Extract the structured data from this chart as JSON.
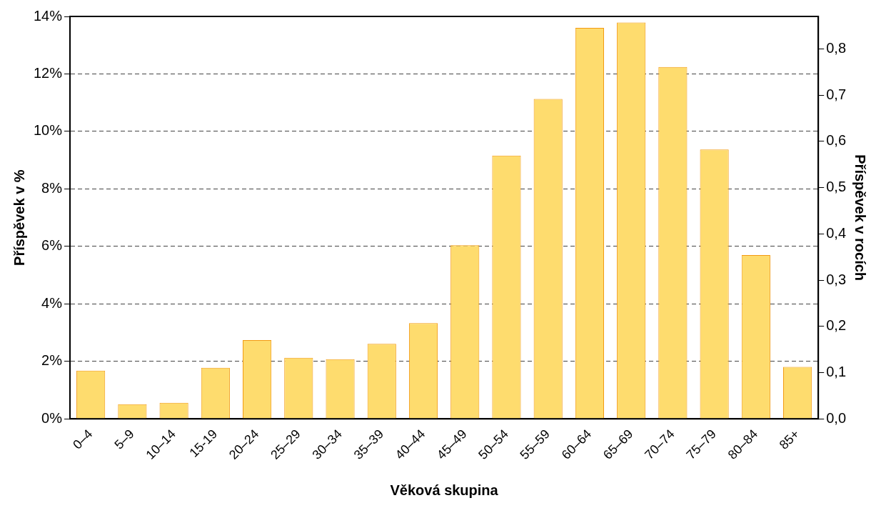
{
  "chart_data": {
    "type": "bar",
    "xlabel": "Věková skupina",
    "ylabel": "Příspěvek v %",
    "y2label": "Příspěvek v rocích",
    "categories": [
      "0–4",
      "5–9",
      "10–14",
      "15-19",
      "20–24",
      "25–29",
      "30–34",
      "35–39",
      "40–44",
      "45–49",
      "50–54",
      "55–59",
      "60–64",
      "65–69",
      "70–74",
      "75–79",
      "80–84",
      "85+"
    ],
    "values": [
      1.68,
      0.51,
      0.56,
      1.78,
      2.74,
      2.13,
      2.08,
      2.61,
      3.33,
      6.04,
      9.16,
      11.13,
      13.6,
      13.79,
      12.24,
      9.37,
      5.7,
      1.81
    ],
    "color": "#fedc6e",
    "ylim": [
      0,
      14
    ],
    "yticks": [
      {
        "value": 0,
        "label": "0%"
      },
      {
        "value": 2,
        "label": "2%"
      },
      {
        "value": 4,
        "label": "4%"
      },
      {
        "value": 6,
        "label": "6%"
      },
      {
        "value": 8,
        "label": "8%"
      },
      {
        "value": 10,
        "label": "10%"
      },
      {
        "value": 12,
        "label": "12%"
      },
      {
        "value": 14,
        "label": "14%"
      }
    ],
    "y2lim": [
      0,
      0.87
    ],
    "y2ticks": [
      {
        "value": 0,
        "label": "0,0"
      },
      {
        "value": 0.1,
        "label": "0,1"
      },
      {
        "value": 0.2,
        "label": "0,2"
      },
      {
        "value": 0.3,
        "label": "0,3"
      },
      {
        "value": 0.4,
        "label": "0,4"
      },
      {
        "value": 0.5,
        "label": "0,5"
      },
      {
        "value": 0.6,
        "label": "0,6"
      },
      {
        "value": 0.7,
        "label": "0,7"
      },
      {
        "value": 0.8,
        "label": "0,8"
      }
    ],
    "grid": "y"
  }
}
